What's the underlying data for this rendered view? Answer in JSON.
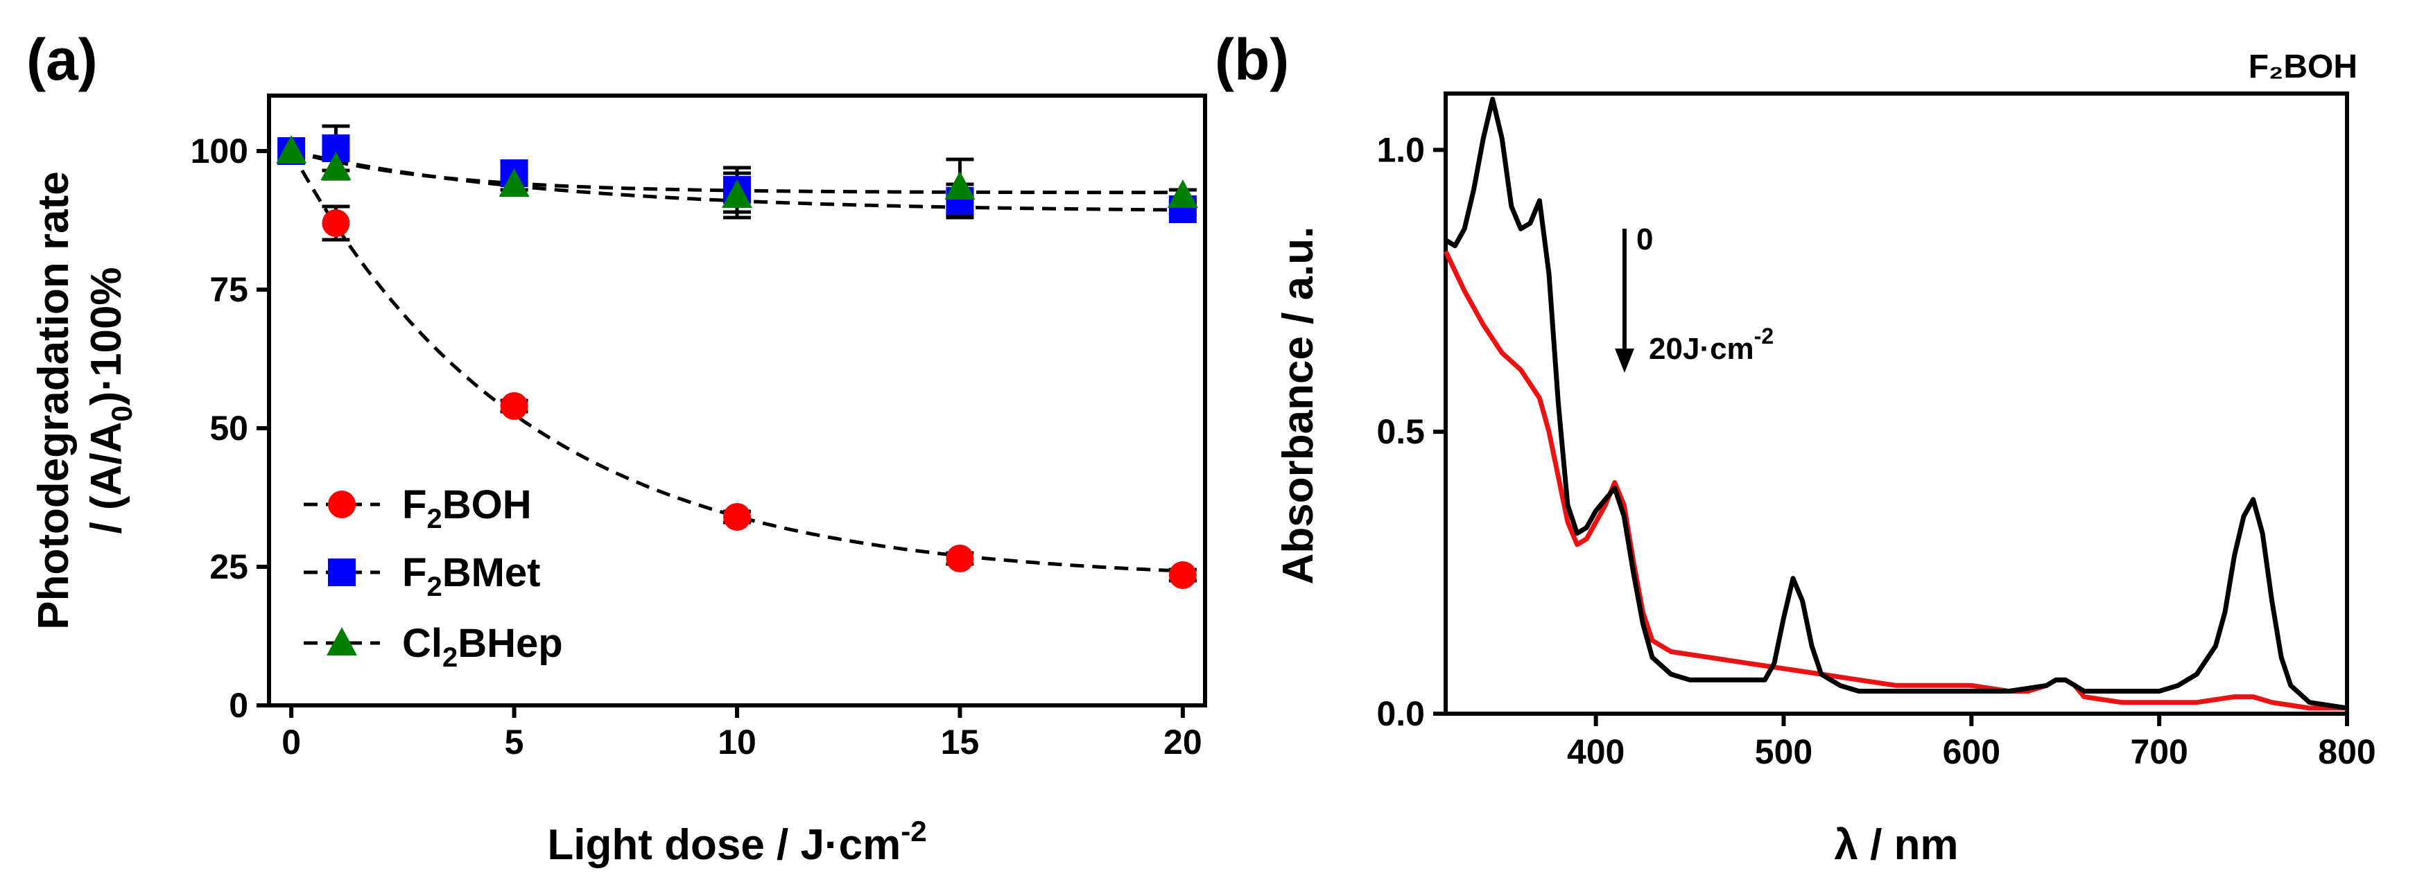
{
  "chart_data": [
    {
      "panel": "(a)",
      "type": "scatter",
      "xlabel": "Light dose / J·cm",
      "xlabel_sup": "-2",
      "ylabel_line1": "Photodegradation rate",
      "ylabel_line2": "/ (A/A",
      "ylabel_sub": "0",
      "ylabel_tail": ")·100%",
      "xlim": [
        -0.5,
        20.5
      ],
      "ylim": [
        0,
        110
      ],
      "xticks": [
        0,
        5,
        10,
        15,
        20
      ],
      "yticks": [
        0,
        25,
        50,
        75,
        100
      ],
      "x": [
        0,
        1,
        5,
        10,
        15,
        20
      ],
      "series": [
        {
          "name": "F2BOH",
          "legend_pre": "F",
          "legend_sub": "2",
          "legend_post": "BOH",
          "color": "#ff0000",
          "marker": "circle",
          "values": [
            100,
            87,
            54,
            34,
            26.5,
            23.5
          ],
          "errors": [
            0,
            3,
            1,
            1,
            1,
            1
          ],
          "fit": {
            "kind": "exp",
            "a": 77.5,
            "k": 0.19,
            "c": 22.5
          }
        },
        {
          "name": "F2BMet",
          "legend_pre": "F",
          "legend_sub": "2",
          "legend_post": "BMet",
          "color": "#0000ff",
          "marker": "square",
          "values": [
            100,
            100.5,
            96,
            93,
            91,
            89.5
          ],
          "errors": [
            0,
            4,
            2,
            4,
            3,
            1
          ],
          "fit": {
            "kind": "exp",
            "a": 11,
            "k": 0.17,
            "c": 89
          }
        },
        {
          "name": "Cl2BHep",
          "legend_pre": "Cl",
          "legend_sub": "2",
          "legend_post": "BHep",
          "color": "#008000",
          "marker": "triangle",
          "values": [
            100,
            97,
            94,
            92,
            93.5,
            92
          ],
          "errors": [
            0,
            2,
            1,
            4,
            5,
            1
          ],
          "fit": {
            "kind": "exp",
            "a": 7.5,
            "k": 0.3,
            "c": 92.5
          }
        }
      ]
    },
    {
      "panel": "(b)",
      "type": "line",
      "title": "F₂BOH",
      "xlabel": "λ / nm",
      "ylabel": "Absorbance / a.u.",
      "xlim": [
        320,
        800
      ],
      "ylim": [
        0,
        1.1
      ],
      "xticks": [
        400,
        500,
        600,
        700,
        800
      ],
      "yticks": [
        0.0,
        0.5,
        1.0
      ],
      "ytick_labels": [
        "0.0",
        "0.5",
        "1.0"
      ],
      "annotation_top": "0",
      "annotation_bottom": "20J·cm",
      "annotation_sup": "-2",
      "series": [
        {
          "name": "0 J·cm-2",
          "color": "#000000",
          "x": [
            320,
            325,
            330,
            335,
            340,
            345,
            350,
            355,
            360,
            365,
            370,
            375,
            380,
            385,
            390,
            395,
            400,
            405,
            410,
            415,
            420,
            425,
            430,
            440,
            450,
            460,
            470,
            480,
            490,
            495,
            500,
            505,
            510,
            515,
            520,
            530,
            540,
            560,
            580,
            600,
            620,
            640,
            645,
            650,
            655,
            660,
            680,
            700,
            710,
            720,
            730,
            735,
            740,
            745,
            750,
            755,
            760,
            765,
            770,
            780,
            800
          ],
          "y": [
            0.84,
            0.83,
            0.86,
            0.93,
            1.02,
            1.09,
            1.02,
            0.9,
            0.86,
            0.87,
            0.91,
            0.78,
            0.55,
            0.37,
            0.32,
            0.33,
            0.36,
            0.38,
            0.4,
            0.35,
            0.25,
            0.16,
            0.1,
            0.07,
            0.06,
            0.06,
            0.06,
            0.06,
            0.06,
            0.09,
            0.17,
            0.24,
            0.2,
            0.12,
            0.07,
            0.05,
            0.04,
            0.04,
            0.04,
            0.04,
            0.04,
            0.05,
            0.06,
            0.06,
            0.05,
            0.04,
            0.04,
            0.04,
            0.05,
            0.07,
            0.12,
            0.18,
            0.28,
            0.35,
            0.38,
            0.32,
            0.2,
            0.1,
            0.05,
            0.02,
            0.01
          ]
        },
        {
          "name": "20 J·cm-2",
          "color": "#ee1111",
          "x": [
            320,
            330,
            340,
            350,
            360,
            370,
            375,
            380,
            385,
            390,
            395,
            400,
            405,
            410,
            415,
            420,
            425,
            430,
            440,
            460,
            480,
            500,
            520,
            540,
            560,
            580,
            600,
            620,
            630,
            640,
            645,
            650,
            655,
            660,
            680,
            700,
            720,
            740,
            750,
            760,
            780,
            800
          ],
          "y": [
            0.82,
            0.75,
            0.69,
            0.64,
            0.61,
            0.56,
            0.5,
            0.42,
            0.34,
            0.3,
            0.31,
            0.34,
            0.37,
            0.41,
            0.37,
            0.27,
            0.18,
            0.13,
            0.11,
            0.1,
            0.09,
            0.08,
            0.07,
            0.06,
            0.05,
            0.05,
            0.05,
            0.04,
            0.04,
            0.05,
            0.06,
            0.06,
            0.05,
            0.03,
            0.02,
            0.02,
            0.02,
            0.03,
            0.03,
            0.02,
            0.01,
            0.01
          ]
        }
      ]
    }
  ]
}
